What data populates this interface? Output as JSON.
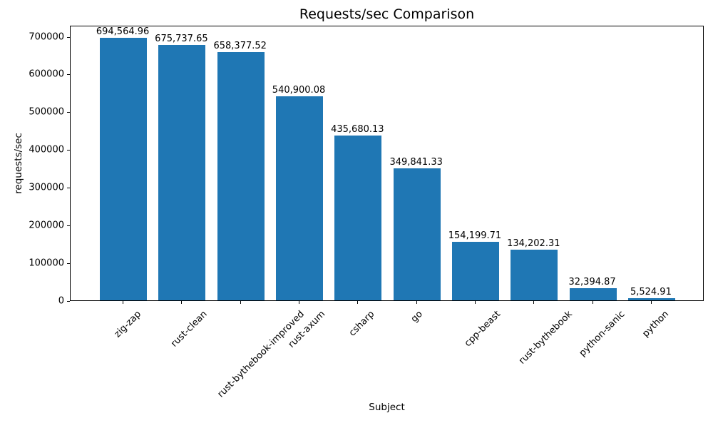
{
  "chart_data": {
    "type": "bar",
    "title": "Requests/sec Comparison",
    "xlabel": "Subject",
    "ylabel": "requests/sec",
    "categories": [
      "zig-zap",
      "rust-clean",
      "rust-bythebook-improved",
      "rust-axum",
      "csharp",
      "go",
      "cpp-beast",
      "rust-bythebook",
      "python-sanic",
      "python"
    ],
    "values": [
      694564.96,
      675737.65,
      658377.52,
      540900.08,
      435680.13,
      349841.33,
      154199.71,
      134202.31,
      32394.87,
      5524.91
    ],
    "value_labels": [
      "694,564.96",
      "675,737.65",
      "658,377.52",
      "540,900.08",
      "435,680.13",
      "349,841.33",
      "154,199.71",
      "134,202.31",
      "32,394.87",
      "5,524.91"
    ],
    "y_ticks": [
      0,
      100000,
      200000,
      300000,
      400000,
      500000,
      600000,
      700000
    ],
    "y_tick_labels": [
      "0",
      "100000",
      "200000",
      "300000",
      "400000",
      "500000",
      "600000",
      "700000"
    ],
    "ylim": [
      0,
      729293
    ],
    "bar_color": "#1f77b4",
    "text_color": "#000000",
    "grid": false,
    "legend_position": "none"
  }
}
